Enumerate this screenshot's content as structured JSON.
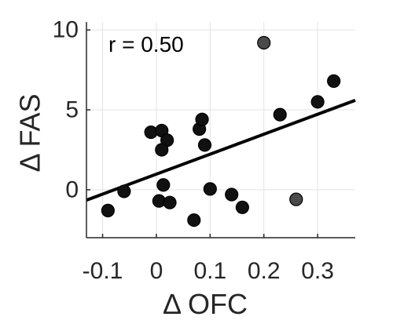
{
  "chart_data": {
    "type": "scatter",
    "xlabel": "Δ OFC",
    "ylabel": "Δ FAS",
    "annotation": "r = 0.50",
    "xlim": [
      -0.13,
      0.37
    ],
    "ylim": [
      -3,
      10.5
    ],
    "xticks": [
      -0.1,
      0,
      0.1,
      0.2,
      0.3
    ],
    "xtick_labels": [
      "-0.1",
      "0",
      "0.1",
      "0.2",
      "0.3"
    ],
    "yticks": [
      0,
      5,
      10
    ],
    "ytick_labels": [
      "0",
      "5",
      "10"
    ],
    "grid": true,
    "points": [
      {
        "x": -0.09,
        "y": -1.3,
        "color": "#111111"
      },
      {
        "x": -0.06,
        "y": -0.1,
        "color": "#111111"
      },
      {
        "x": -0.01,
        "y": 3.6,
        "color": "#111111"
      },
      {
        "x": 0.01,
        "y": 3.7,
        "color": "#111111"
      },
      {
        "x": 0.02,
        "y": 3.1,
        "color": "#111111"
      },
      {
        "x": 0.01,
        "y": 2.5,
        "color": "#111111"
      },
      {
        "x": 0.013,
        "y": 0.3,
        "color": "#111111"
      },
      {
        "x": 0.005,
        "y": -0.7,
        "color": "#111111"
      },
      {
        "x": 0.025,
        "y": -0.8,
        "color": "#111111"
      },
      {
        "x": 0.07,
        "y": -1.9,
        "color": "#111111"
      },
      {
        "x": 0.08,
        "y": 3.8,
        "color": "#111111"
      },
      {
        "x": 0.085,
        "y": 4.4,
        "color": "#111111"
      },
      {
        "x": 0.09,
        "y": 2.8,
        "color": "#111111"
      },
      {
        "x": 0.1,
        "y": 0.05,
        "color": "#111111"
      },
      {
        "x": 0.14,
        "y": -0.3,
        "color": "#111111"
      },
      {
        "x": 0.16,
        "y": -1.1,
        "color": "#111111"
      },
      {
        "x": 0.2,
        "y": 9.2,
        "color": "#4a4a4a"
      },
      {
        "x": 0.23,
        "y": 4.7,
        "color": "#111111"
      },
      {
        "x": 0.26,
        "y": -0.6,
        "color": "#4a4a4a"
      },
      {
        "x": 0.3,
        "y": 5.5,
        "color": "#111111"
      },
      {
        "x": 0.33,
        "y": 6.8,
        "color": "#111111"
      }
    ],
    "fit_line": {
      "x": [
        -0.13,
        0.37
      ],
      "y": [
        -0.65,
        5.6
      ]
    }
  }
}
